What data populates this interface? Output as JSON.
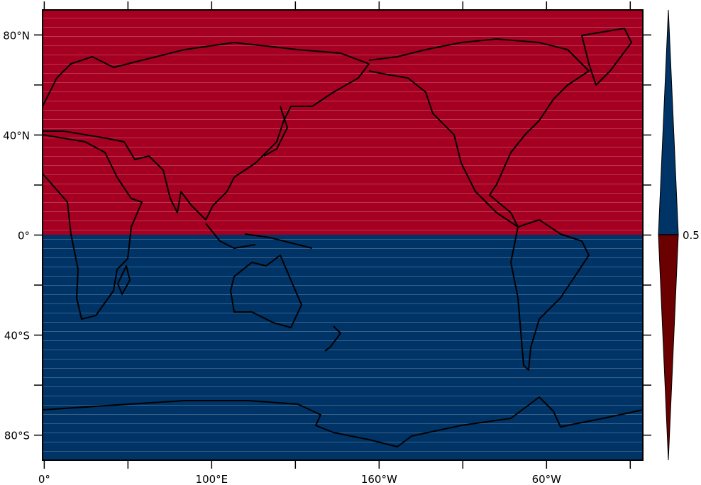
{
  "map": {
    "projection": "cylindrical equidistant",
    "lon_range": [
      -1,
      357.5
    ],
    "lat_range": [
      -90,
      90
    ],
    "x_tick_labels": [
      {
        "lon": 0,
        "label": "0°"
      },
      {
        "lon": 100,
        "label": "100°E"
      },
      {
        "lon": 200,
        "label": "160°W"
      },
      {
        "lon": 300,
        "label": "60°W"
      }
    ],
    "x_minor_ticks_every_deg": 50,
    "y_tick_labels": [
      {
        "lat": 80,
        "label": "80°N"
      },
      {
        "lat": 40,
        "label": "40°N"
      },
      {
        "lat": 0,
        "label": "0°"
      },
      {
        "lat": -40,
        "label": "40°S"
      },
      {
        "lat": -80,
        "label": "80°S"
      }
    ],
    "y_minor_ticks_every_deg": 20,
    "fields": [
      {
        "region": "northern hemisphere",
        "color": "#a50021"
      },
      {
        "region": "southern hemisphere",
        "color": "#003366"
      }
    ],
    "coastline_color": "#000000"
  },
  "colorbar": {
    "label": "0.5",
    "above_color": "#003366",
    "below_color": "#6b0000"
  }
}
